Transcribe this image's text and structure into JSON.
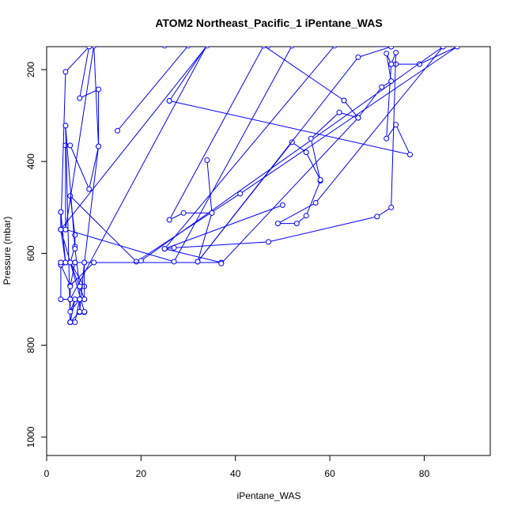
{
  "chart_data": {
    "type": "line",
    "title": "ATOM2 Northeast_Pacific_1 iPentane_WAS",
    "xlabel": "iPentane_WAS",
    "ylabel": "Pressure (mbar)",
    "xlim": [
      0,
      94
    ],
    "ylim": [
      1040,
      150
    ],
    "y_reversed": true,
    "xticks": [
      0,
      20,
      40,
      60,
      80
    ],
    "yticks": [
      200,
      400,
      600,
      800,
      1000
    ],
    "grid": false,
    "legend": "none",
    "series_color": "#0000ff",
    "marker": "open-circle",
    "series": [
      {
        "x": [
          8,
          8,
          7,
          7,
          8,
          5,
          6,
          6,
          5,
          19,
          41,
          87,
          79,
          74,
          73,
          72,
          74,
          77,
          26
        ],
        "y": [
          728,
          728,
          728,
          672,
          672,
          620,
          585,
          560,
          475,
          618,
          470,
          150,
          188,
          188,
          188,
          350,
          320,
          385,
          268
        ]
      },
      {
        "x": [
          26,
          34,
          5,
          5,
          6,
          7,
          8,
          8,
          3,
          3,
          5,
          4,
          4,
          37,
          25,
          27,
          47,
          70,
          73,
          74,
          73,
          72,
          73,
          71,
          66,
          62,
          56,
          58,
          55,
          53,
          49,
          57,
          84,
          20
        ],
        "y": [
          268,
          146,
          700,
          750,
          750,
          700,
          700,
          620,
          620,
          620,
          620,
          620,
          620,
          620,
          590,
          588,
          575,
          520,
          500,
          163,
          188,
          165,
          225,
          238,
          305,
          293,
          350,
          442,
          518,
          535,
          535,
          490,
          150,
          616
        ]
      },
      {
        "x": [
          5,
          5,
          7,
          8,
          11,
          10,
          4,
          4,
          5,
          9,
          11,
          11,
          7,
          9,
          4,
          3,
          3,
          3,
          4,
          5,
          6,
          10,
          5,
          3,
          3
        ],
        "y": [
          750,
          750,
          727,
          620,
          367,
          148,
          548,
          365,
          365,
          460,
          367,
          243,
          262,
          150,
          205,
          548,
          510,
          548,
          620,
          620,
          620,
          620,
          670,
          625,
          625
        ]
      },
      {
        "x": [
          8,
          3,
          3,
          3,
          4,
          3,
          3,
          3,
          6,
          5,
          5,
          4,
          4,
          6,
          7,
          8,
          5,
          6,
          5,
          5,
          6,
          5,
          7,
          7
        ],
        "y": [
          727,
          548,
          548,
          510,
          620,
          625,
          620,
          700,
          700,
          750,
          750,
          322,
          322,
          590,
          672,
          700,
          620,
          620,
          672,
          700,
          700,
          727,
          700,
          700
        ]
      },
      {
        "x": [
          15,
          30,
          47,
          52,
          27,
          4,
          3
        ],
        "y": [
          333,
          148,
          148,
          148,
          618,
          548,
          548
        ]
      },
      {
        "x": [
          25,
          34,
          3,
          3
        ],
        "y": [
          148,
          148,
          548,
          548
        ]
      },
      {
        "x": [
          63,
          46,
          26,
          29,
          35,
          34
        ],
        "y": [
          267,
          148,
          527,
          512,
          512,
          397
        ]
      },
      {
        "x": [
          35,
          32,
          52,
          55,
          58
        ],
        "y": [
          512,
          618,
          358,
          380,
          440
        ]
      },
      {
        "x": [
          32,
          66,
          73,
          61,
          25,
          50
        ],
        "y": [
          618,
          173,
          150,
          148,
          590,
          495
        ]
      },
      {
        "x": [
          37,
          66,
          66,
          63
        ],
        "y": [
          622,
          305,
          305,
          267
        ]
      }
    ]
  }
}
